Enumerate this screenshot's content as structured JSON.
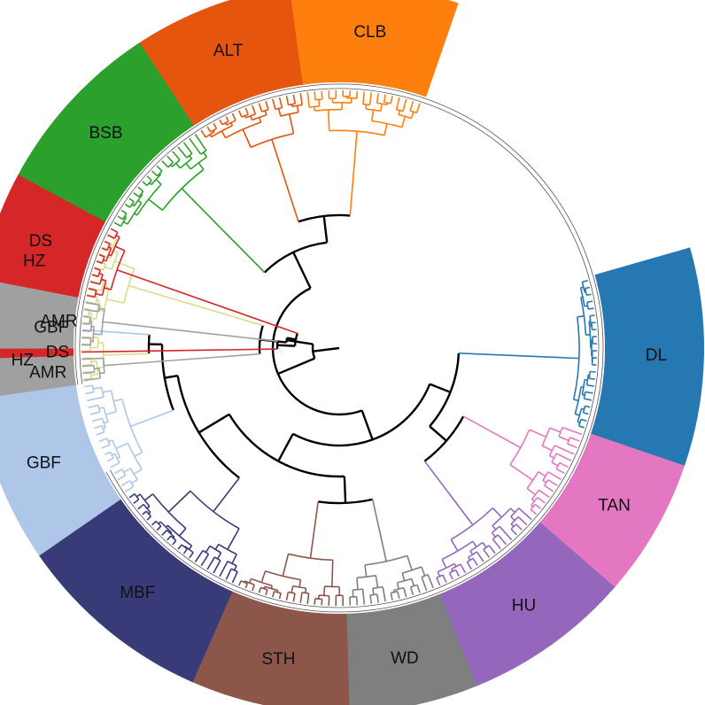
{
  "figure": {
    "type": "circular-phylogenetic-tree",
    "branch_color_internal": "#000000",
    "clades": [
      {
        "id": "dl",
        "label": "DL",
        "color": "#2678b2",
        "leaves": 22
      },
      {
        "id": "tan",
        "label": "TAN",
        "color": "#e377c2",
        "leaves": 14
      },
      {
        "id": "hu",
        "label": "HU",
        "color": "#9467bd",
        "leaves": 17
      },
      {
        "id": "wd",
        "label": "WD",
        "color": "#7f7f7f",
        "leaves": 13
      },
      {
        "id": "sth",
        "label": "STH",
        "color": "#8c564b",
        "leaves": 16
      },
      {
        "id": "mbf",
        "label": "MBF",
        "color": "#393b79",
        "leaves": 20
      },
      {
        "id": "gbf",
        "label": "GBF",
        "color": "#aec7e8",
        "leaves": 17
      },
      {
        "id": "hz2",
        "label": "HZ",
        "color": "#dbdb8d",
        "leaves": 7
      },
      {
        "id": "gbf2",
        "label": "GBF",
        "color": "#aec7e8",
        "leaves": 1
      },
      {
        "id": "hz1",
        "label": "HZ",
        "color": "#dbdb8d",
        "leaves": 14
      },
      {
        "id": "amr2",
        "label": "AMR",
        "color": "#a0a0a0",
        "leaves": 4
      },
      {
        "id": "ds2",
        "label": "DS",
        "color": "#d62728",
        "leaves": 1
      },
      {
        "id": "amr1",
        "label": "AMR",
        "color": "#a0a0a0",
        "leaves": 7
      },
      {
        "id": "ds1",
        "label": "DS",
        "color": "#d62728",
        "leaves": 11
      },
      {
        "id": "bsb",
        "label": "BSB",
        "color": "#2ca02c",
        "leaves": 18
      },
      {
        "id": "alt",
        "label": "ALT",
        "color": "#e6550d",
        "leaves": 16
      },
      {
        "id": "clb",
        "label": "CLB",
        "color": "#ff7f0e",
        "leaves": 17
      }
    ]
  }
}
